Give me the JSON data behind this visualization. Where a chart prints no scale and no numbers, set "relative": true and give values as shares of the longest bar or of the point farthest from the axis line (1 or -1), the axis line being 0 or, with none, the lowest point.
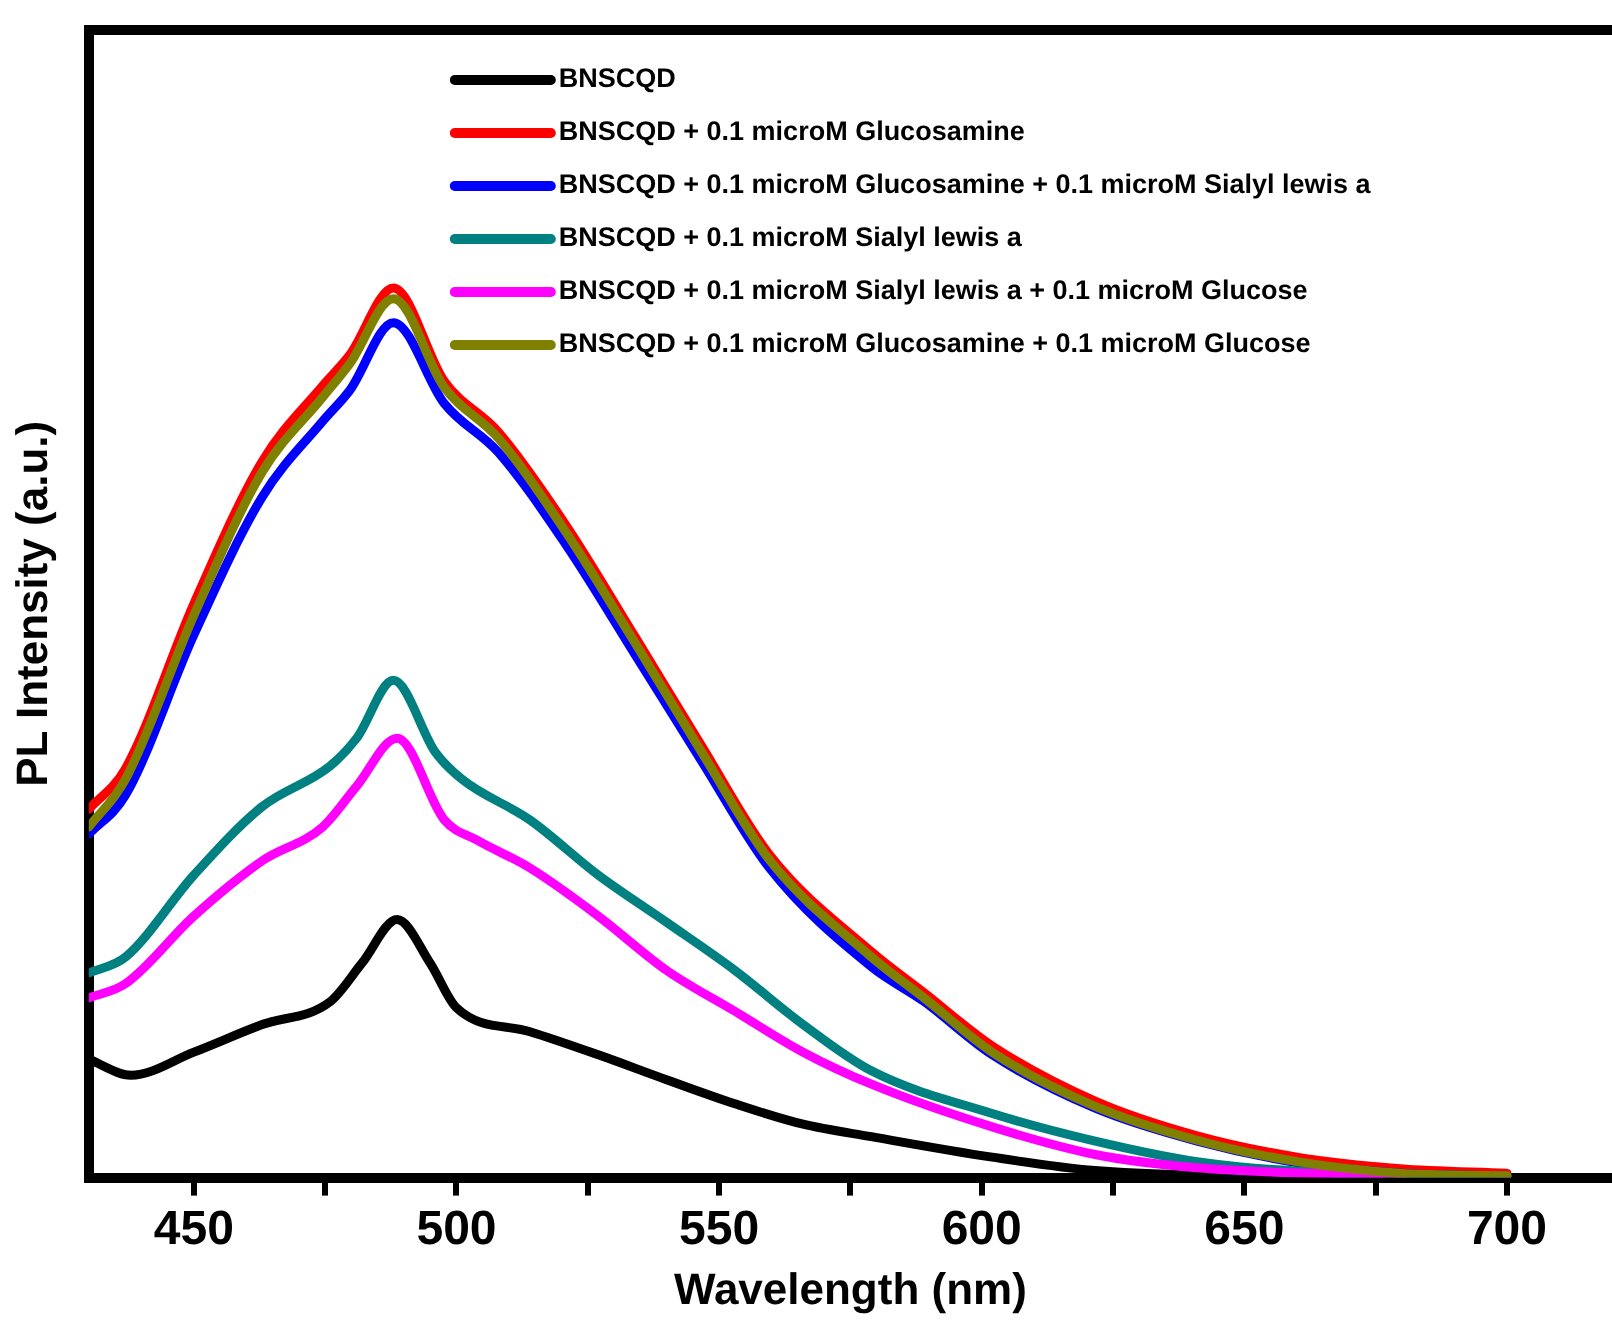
{
  "chart_data": {
    "type": "line",
    "relative": true,
    "xlabel": "Wavelength (nm)",
    "ylabel": "PL Intensity (a.u.)",
    "xlim": [
      430,
      720
    ],
    "xticks": [
      450,
      {
        "value": 475,
        "label": null
      },
      500,
      {
        "value": 525,
        "label": null
      },
      550,
      {
        "value": 575,
        "label": null
      },
      600,
      {
        "value": 625,
        "label": null
      },
      650,
      {
        "value": 675,
        "label": null
      },
      700
    ],
    "grid": false,
    "legend": "top",
    "marker": "none",
    "line_style": "solid",
    "series": [
      {
        "name": "BNSCQD",
        "color": "#000000",
        "x": [
          430,
          438,
          450,
          463,
          476,
          482,
          488.7,
          495,
          500,
          514,
          527,
          540,
          553,
          566,
          579,
          602,
          621.6,
          650,
          700
        ],
        "values": [
          0.133,
          0.115,
          0.141,
          0.172,
          0.198,
          0.241,
          0.29,
          0.241,
          0.191,
          0.164,
          0.138,
          0.11,
          0.083,
          0.06,
          0.046,
          0.023,
          0.008,
          0.002,
          0.001
        ]
      },
      {
        "name": "BNSCQD + 0.1 microM Glucosamine",
        "color": "#ff0000",
        "x": [
          430,
          437,
          450,
          463,
          474.5,
          479.7,
          488,
          497.7,
          508,
          521,
          534,
          546.7,
          559.6,
          579,
          589,
          602,
          621.6,
          641,
          660,
          679.6,
          700
        ],
        "values": [
          0.414,
          0.46,
          0.645,
          0.805,
          0.89,
          0.925,
          1.0,
          0.895,
          0.838,
          0.732,
          0.608,
          0.485,
          0.363,
          0.254,
          0.208,
          0.148,
          0.086,
          0.047,
          0.023,
          0.01,
          0.005
        ]
      },
      {
        "name": "BNSCQD + 0.1 microM Glucosamine + 0.1 microM Sialyl lewis a",
        "color": "#0000ff",
        "x": [
          430,
          437,
          450,
          463,
          474.5,
          479.7,
          488,
          497.7,
          508,
          521,
          534,
          546.7,
          559.6,
          579,
          589,
          602,
          621.6,
          641,
          660,
          679.6,
          700
        ],
        "values": [
          0.386,
          0.43,
          0.61,
          0.765,
          0.85,
          0.885,
          0.961,
          0.87,
          0.815,
          0.71,
          0.588,
          0.468,
          0.348,
          0.237,
          0.198,
          0.138,
          0.078,
          0.041,
          0.017,
          0.005,
          0.002
        ]
      },
      {
        "name": "BNSCQD + 0.1 microM Sialyl lewis a",
        "color": "#008080",
        "x": [
          430,
          437,
          450,
          463,
          476,
          481,
          488,
          496,
          501,
          514,
          527,
          540,
          553,
          566,
          579,
          602,
          621.6,
          641,
          667,
          700
        ],
        "values": [
          0.23,
          0.248,
          0.34,
          0.417,
          0.463,
          0.494,
          0.559,
          0.478,
          0.448,
          0.402,
          0.34,
          0.287,
          0.233,
          0.172,
          0.12,
          0.072,
          0.041,
          0.018,
          0.005,
          0.002
        ]
      },
      {
        "name": "BNSCQD + 0.1 microM Sialyl lewis a + 0.1 microM Glucose",
        "color": "#ff00ff",
        "x": [
          430,
          437,
          450,
          463,
          474.5,
          481,
          488.7,
          497.7,
          504,
          514,
          527,
          540,
          553,
          566,
          579,
          602,
          621.6,
          641,
          680
        ],
        "values": [
          0.202,
          0.218,
          0.294,
          0.356,
          0.394,
          0.44,
          0.494,
          0.402,
          0.379,
          0.348,
          0.294,
          0.233,
          0.187,
          0.141,
          0.105,
          0.057,
          0.026,
          0.011,
          0.002
        ]
      },
      {
        "name": "BNSCQD + 0.1 microM Glucosamine + 0.1 microM Glucose",
        "color": "#808000",
        "x": [
          430,
          437,
          450,
          463,
          474.5,
          479.7,
          488,
          497.7,
          508,
          521,
          534,
          546.7,
          559.6,
          579,
          589,
          602,
          621.6,
          641,
          660,
          679.6,
          700
        ],
        "values": [
          0.394,
          0.448,
          0.632,
          0.793,
          0.877,
          0.915,
          0.988,
          0.888,
          0.831,
          0.724,
          0.601,
          0.478,
          0.357,
          0.248,
          0.202,
          0.141,
          0.08,
          0.042,
          0.018,
          0.005,
          0.002
        ]
      }
    ]
  }
}
